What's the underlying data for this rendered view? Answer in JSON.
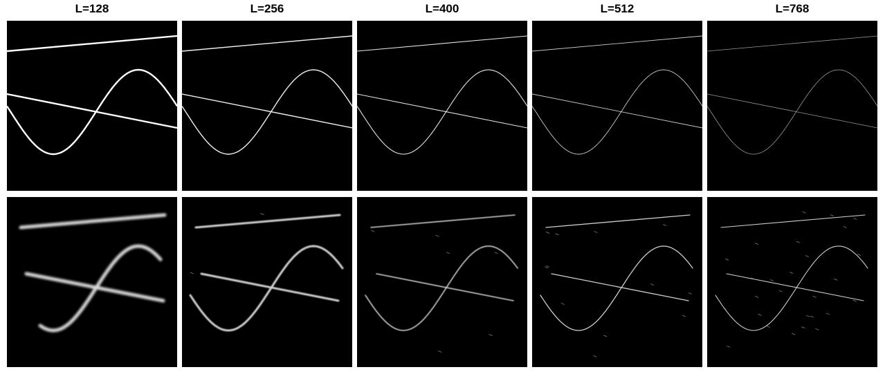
{
  "figure": {
    "columns": [
      {
        "title": "L=128"
      },
      {
        "title": "L=256"
      },
      {
        "title": "L=400"
      },
      {
        "title": "L=512"
      },
      {
        "title": "L=768"
      }
    ],
    "rows": [
      {
        "content": "ground-truth line and sinusoid rendering"
      },
      {
        "content": "reconstructed line and sinusoid rendering"
      }
    ],
    "colors": {
      "background": "#000000",
      "stroke": "#ffffff",
      "gap": "#ffffff"
    }
  }
}
